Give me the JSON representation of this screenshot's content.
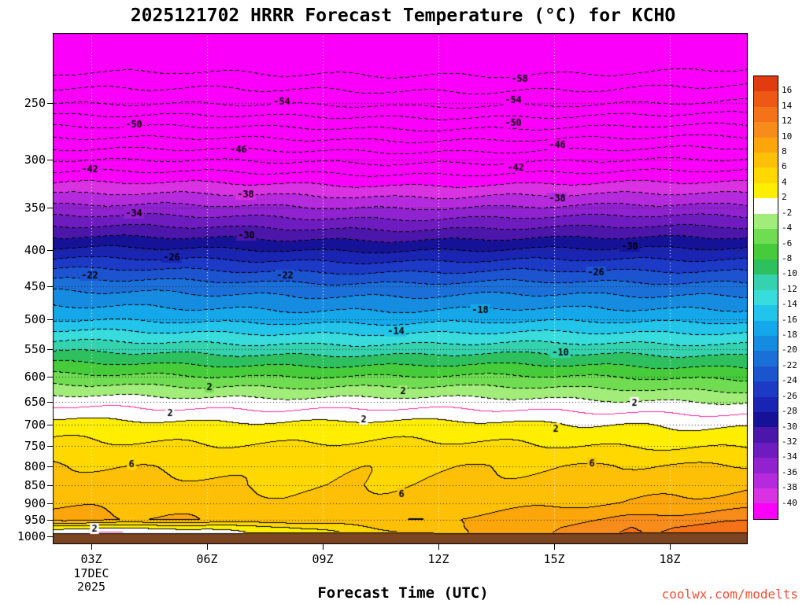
{
  "watermark": {
    "text": "coolwx.com/modelts",
    "color": "#f4503c"
  },
  "chart_data": {
    "type": "heatmap",
    "title": "2025121702 HRRR Forecast Temperature (°C) for KCHO",
    "xlabel": "Forecast Time (UTC)",
    "ylabel": "",
    "units": "°C",
    "x_range_hours": [
      2,
      20
    ],
    "p_top": 200,
    "p_bottom": 1026,
    "x_ticks": [
      {
        "label": "03Z",
        "hour": 3
      },
      {
        "label": "06Z",
        "hour": 6
      },
      {
        "label": "09Z",
        "hour": 9
      },
      {
        "label": "12Z",
        "hour": 12
      },
      {
        "label": "15Z",
        "hour": 15
      },
      {
        "label": "18Z",
        "hour": 18
      }
    ],
    "date_lines": [
      "17DEC",
      "2025"
    ],
    "pressure_ticks": [
      250,
      300,
      350,
      400,
      450,
      500,
      550,
      600,
      650,
      700,
      750,
      800,
      850,
      900,
      950,
      1000
    ],
    "gridline_hours": [
      3,
      6,
      9,
      12,
      15,
      18
    ],
    "x_hours": [
      2,
      5,
      8,
      11,
      14,
      17,
      20
    ],
    "pressure_levels": [
      200,
      250,
      300,
      350,
      400,
      450,
      500,
      550,
      600,
      650,
      700,
      750,
      800,
      850,
      900,
      950,
      975,
      1000
    ],
    "temperature_grid": [
      [
        -63.0,
        -54.0,
        -44.0,
        -35.4,
        -27.7,
        -20.8,
        -16.3,
        -10.6,
        -5.7,
        -1.0,
        2.8,
        4.5,
        6.1,
        7.0,
        7.8,
        8.8,
        2.8,
        -1.5
      ],
      [
        -62.5,
        -54.2,
        -44.2,
        -35.6,
        -27.9,
        -21.0,
        -16.5,
        -10.8,
        -5.8,
        -1.1,
        2.6,
        4.4,
        5.9,
        6.8,
        7.6,
        8.2,
        2.4,
        -0.5
      ],
      [
        -63.5,
        -54.5,
        -44.5,
        -35.8,
        -28.1,
        -21.2,
        -16.6,
        -11.0,
        -6.0,
        -1.3,
        2.4,
        4.2,
        5.4,
        5.5,
        6.3,
        7.2,
        3.5,
        1.8
      ],
      [
        -63.5,
        -54.6,
        -44.6,
        -36.0,
        -28.2,
        -21.4,
        -16.8,
        -11.2,
        -6.1,
        -1.4,
        2.5,
        4.3,
        5.6,
        5.9,
        6.4,
        7.5,
        6.5,
        5.0
      ],
      [
        -63.0,
        -54.4,
        -44.4,
        -35.8,
        -28.0,
        -21.2,
        -16.6,
        -11.0,
        -6.0,
        -1.6,
        2.2,
        4.2,
        5.8,
        6.6,
        7.4,
        9.0,
        9.5,
        9.8
      ],
      [
        -63.0,
        -54.2,
        -44.2,
        -35.6,
        -27.9,
        -21.5,
        -16.5,
        -11.0,
        -6.2,
        -1.8,
        2.0,
        4.0,
        6.3,
        7.2,
        8.2,
        10.5,
        12.0,
        12.3
      ],
      [
        -62.5,
        -54.0,
        -44.0,
        -35.5,
        -27.7,
        -21.3,
        -16.4,
        -11.0,
        -6.5,
        -2.2,
        1.6,
        3.8,
        6.1,
        7.5,
        8.8,
        11.5,
        12.8,
        13.0
      ]
    ],
    "contour_interval": 2,
    "contour_level_min": -58,
    "contour_level_max": 14,
    "zero_line_color": "#ff2da0",
    "terrain_color": "#7a4520",
    "terrain_pressure": 988,
    "contour_labels": [
      {
        "t": "-58",
        "x": 660,
        "y": 100
      },
      {
        "t": "-54",
        "x": 358,
        "y": 129
      },
      {
        "t": "-54",
        "x": 652,
        "y": 127
      },
      {
        "t": "-50",
        "x": 170,
        "y": 158
      },
      {
        "t": "-50",
        "x": 652,
        "y": 156
      },
      {
        "t": "-46",
        "x": 303,
        "y": 190
      },
      {
        "t": "-46",
        "x": 708,
        "y": 184
      },
      {
        "t": "-42",
        "x": 114,
        "y": 215
      },
      {
        "t": "-42",
        "x": 655,
        "y": 213
      },
      {
        "t": "-38",
        "x": 312,
        "y": 247
      },
      {
        "t": "-38",
        "x": 708,
        "y": 252
      },
      {
        "t": "-34",
        "x": 170,
        "y": 271
      },
      {
        "t": "-30",
        "x": 313,
        "y": 299
      },
      {
        "t": "-30",
        "x": 800,
        "y": 313
      },
      {
        "t": "-26",
        "x": 218,
        "y": 327
      },
      {
        "t": "-26",
        "x": 757,
        "y": 346
      },
      {
        "t": "-22",
        "x": 114,
        "y": 350
      },
      {
        "t": "-22",
        "x": 362,
        "y": 350
      },
      {
        "t": "-18",
        "x": 610,
        "y": 394
      },
      {
        "t": "-14",
        "x": 503,
        "y": 421
      },
      {
        "t": "-10",
        "x": 712,
        "y": 448
      },
      {
        "t": "2",
        "x": 266,
        "y": 492
      },
      {
        "t": "2",
        "x": 512,
        "y": 497
      },
      {
        "t": "2",
        "x": 806,
        "y": 512
      },
      {
        "t": "2",
        "x": 216,
        "y": 525
      },
      {
        "t": "2",
        "x": 462,
        "y": 533
      },
      {
        "t": "2",
        "x": 706,
        "y": 545
      },
      {
        "t": "6",
        "x": 167,
        "y": 590
      },
      {
        "t": "6",
        "x": 752,
        "y": 589
      },
      {
        "t": "6",
        "x": 510,
        "y": 628
      },
      {
        "t": "2",
        "x": 120,
        "y": 672
      }
    ],
    "colorbar": {
      "labels": [
        "16",
        "14",
        "12",
        "10",
        "8",
        "6",
        "4",
        "2",
        "-2",
        "-4",
        "-6",
        "-8",
        "-10",
        "-12",
        "-14",
        "-16",
        "-18",
        "-20",
        "-22",
        "-24",
        "-26",
        "-28",
        "-30",
        "-32",
        "-34",
        "-36",
        "-38",
        "-40"
      ],
      "colors": [
        "#e03c10",
        "#ee5814",
        "#f47218",
        "#f88c1a",
        "#fca60c",
        "#fec006",
        "#ffd800",
        "#ffee00",
        "#ffffff",
        "#a2ec7a",
        "#70dc52",
        "#46cc3a",
        "#2ec05e",
        "#34d2ae",
        "#38dcdc",
        "#22c4ea",
        "#14a8ea",
        "#168ce0",
        "#1a70d8",
        "#1c54d0",
        "#1c3ac6",
        "#1a24b2",
        "#161298",
        "#4c16aa",
        "#6e1cc0",
        "#9022d0",
        "#b62ade",
        "#da32e2",
        "#fa00fa"
      ]
    }
  }
}
